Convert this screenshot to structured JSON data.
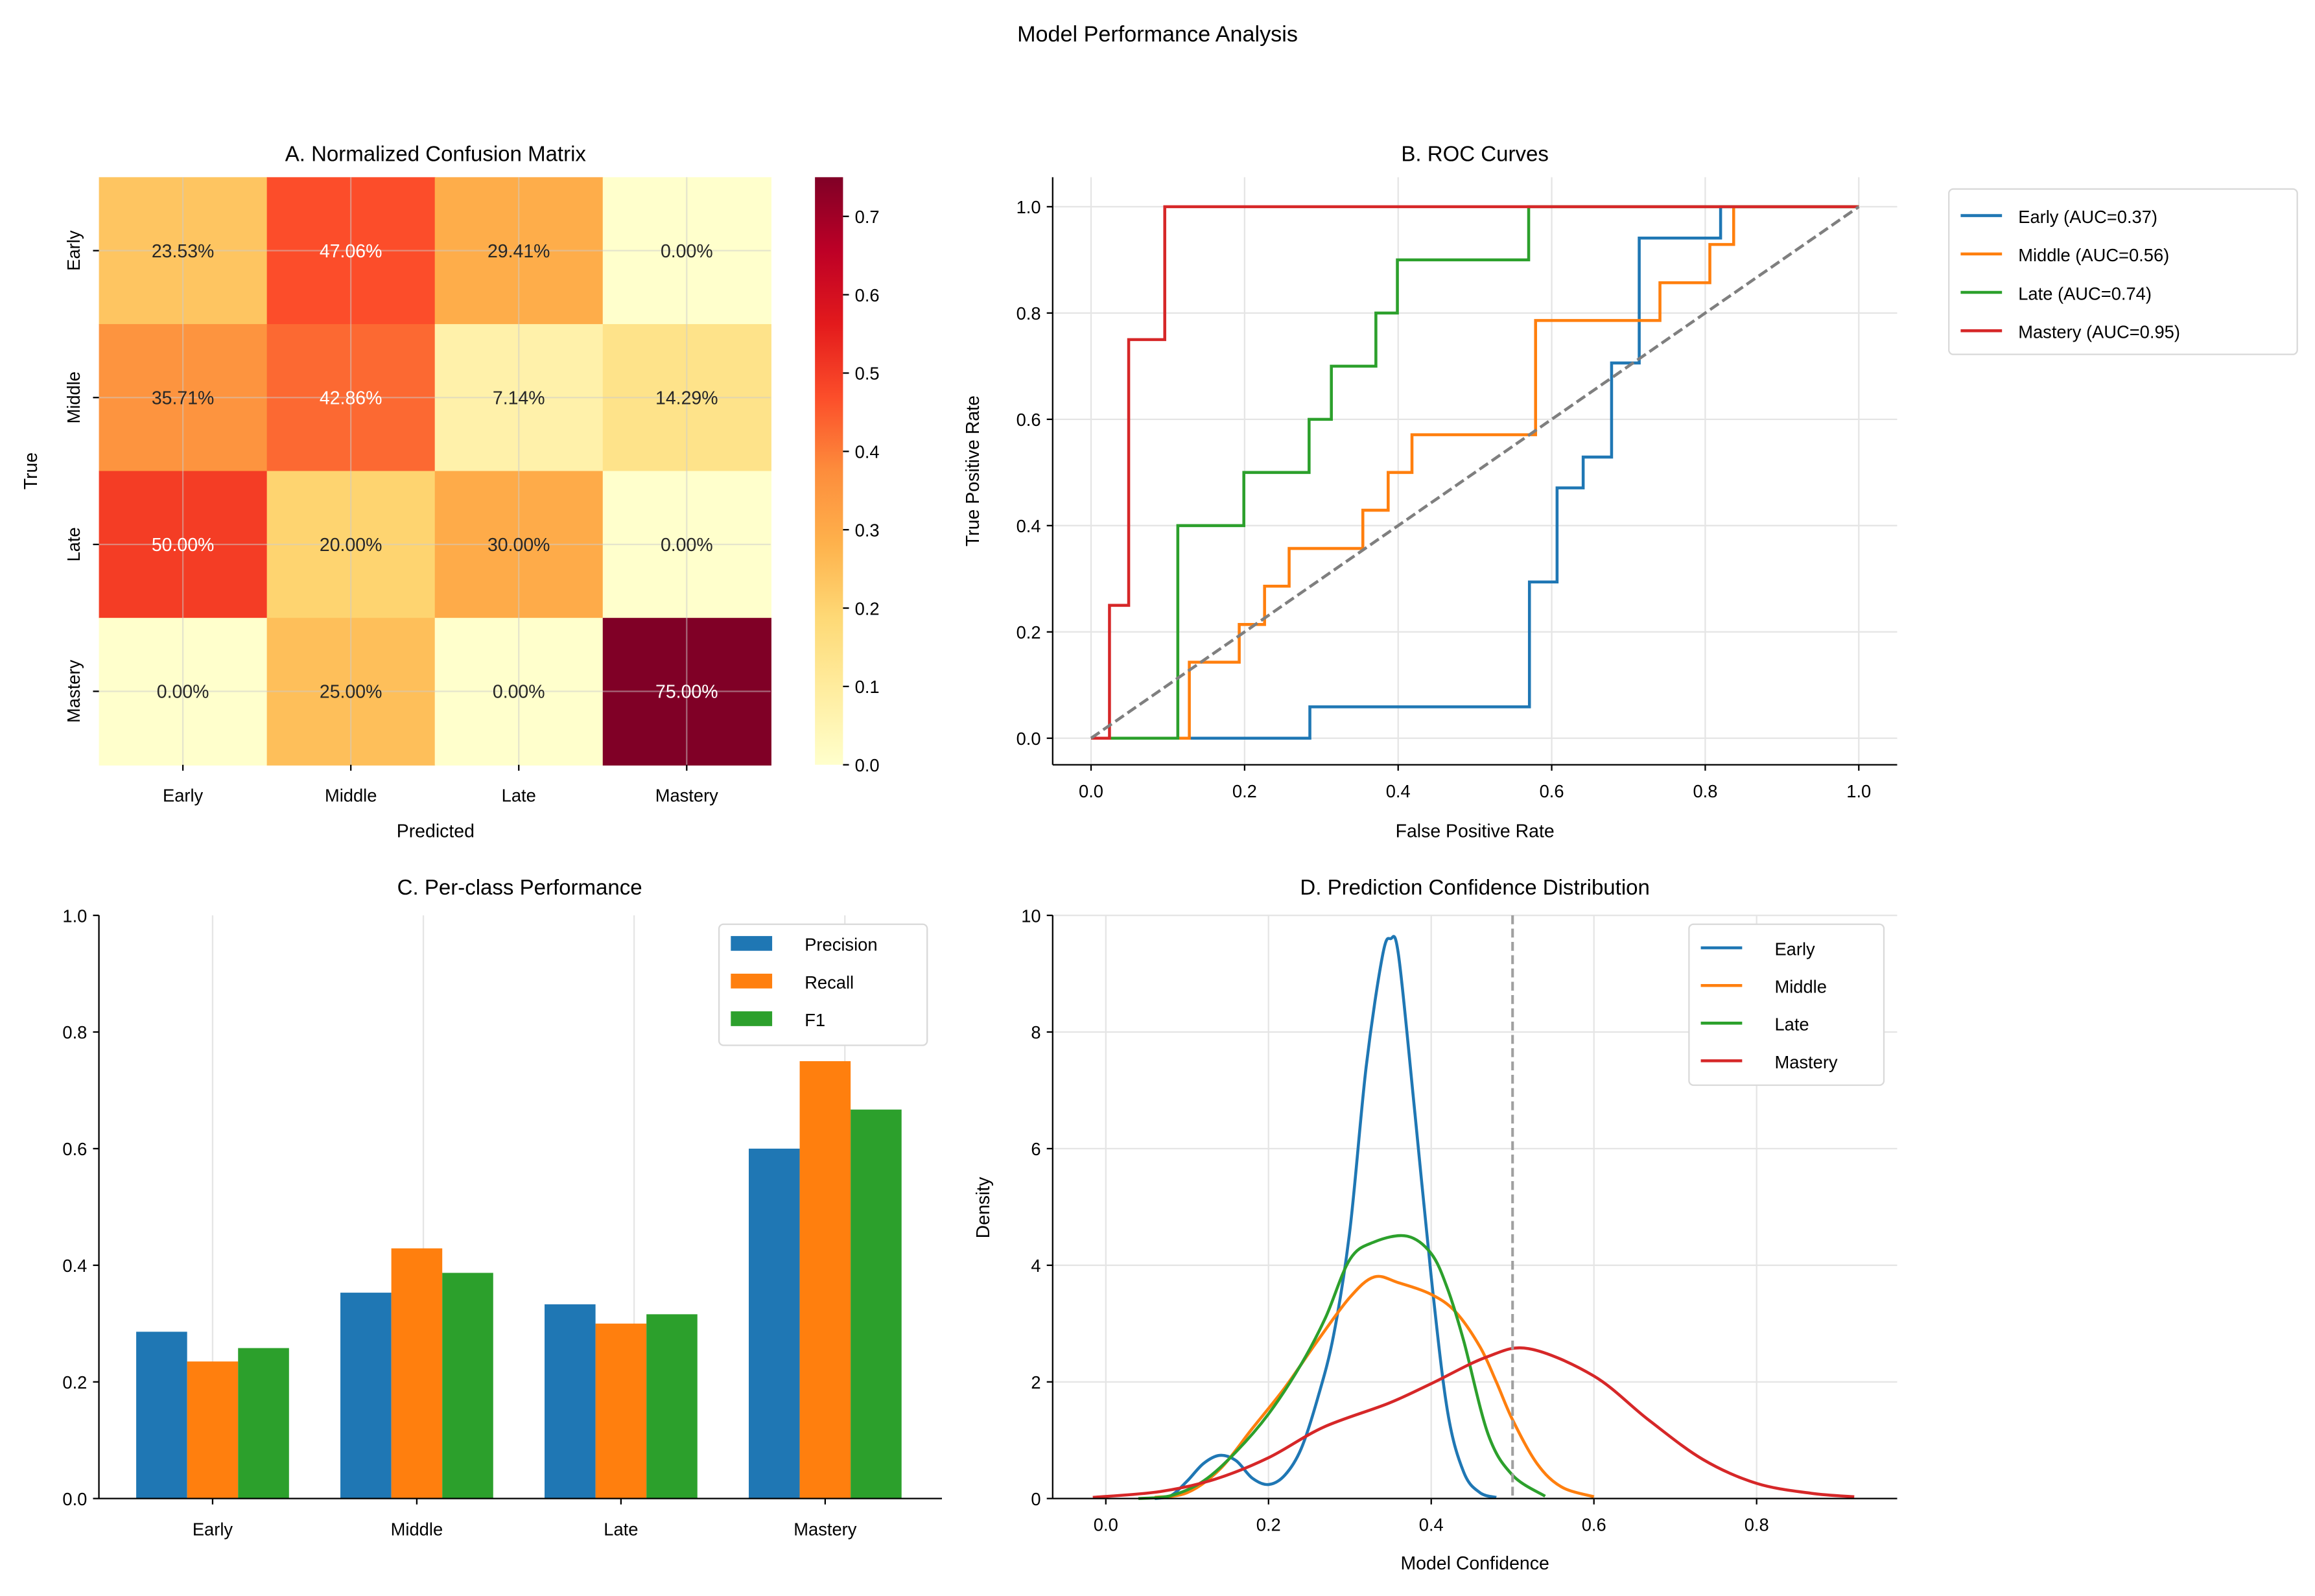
{
  "title": "Model Performance Analysis",
  "colors": {
    "Early": "#1f77b4",
    "Middle": "#ff7f0e",
    "Late": "#2ca02c",
    "Mastery": "#d62728",
    "grid": "#e5e5e5",
    "diagonal": "#7f7f7f"
  },
  "chart_data": [
    {
      "type": "heatmap",
      "title": "A. Normalized Confusion Matrix",
      "xlabel": "Predicted",
      "ylabel": "True",
      "x_categories": [
        "Early",
        "Middle",
        "Late",
        "Mastery"
      ],
      "y_categories": [
        "Early",
        "Middle",
        "Late",
        "Mastery"
      ],
      "values": [
        [
          0.2353,
          0.4706,
          0.2941,
          0.0
        ],
        [
          0.3571,
          0.4286,
          0.0714,
          0.1429
        ],
        [
          0.5,
          0.2,
          0.3,
          0.0
        ],
        [
          0.0,
          0.25,
          0.0,
          0.75
        ]
      ],
      "labels": [
        [
          "23.53%",
          "47.06%",
          "29.41%",
          "0.00%"
        ],
        [
          "35.71%",
          "42.86%",
          "7.14%",
          "14.29%"
        ],
        [
          "50.00%",
          "20.00%",
          "30.00%",
          "0.00%"
        ],
        [
          "0.00%",
          "25.00%",
          "0.00%",
          "75.00%"
        ]
      ],
      "colormap": "YlOrRd",
      "colorbar": {
        "range": [
          0,
          0.75
        ],
        "ticks": [
          "0.0",
          "0.1",
          "0.2",
          "0.3",
          "0.4",
          "0.5",
          "0.6",
          "0.7"
        ]
      }
    },
    {
      "type": "line",
      "title": "B. ROC Curves",
      "xlabel": "False Positive Rate",
      "ylabel": "True Positive Rate",
      "xlim": [
        -0.05,
        1.05
      ],
      "ylim": [
        -0.05,
        1.05
      ],
      "xticks": [
        "0.0",
        "0.2",
        "0.4",
        "0.6",
        "0.8",
        "1.0"
      ],
      "yticks": [
        "0.0",
        "0.2",
        "0.4",
        "0.6",
        "0.8",
        "1.0"
      ],
      "grid": true,
      "legend": "outside-right",
      "series": [
        {
          "name": "Early (AUC=0.37)",
          "class": "Early",
          "fpr": [
            0,
            0.285,
            0.285,
            0.571,
            0.571,
            0.607,
            0.607,
            0.641,
            0.641,
            0.678,
            0.678,
            0.714,
            0.714,
            0.82,
            0.82,
            1
          ],
          "tpr": [
            0,
            0,
            0.059,
            0.059,
            0.294,
            0.294,
            0.471,
            0.471,
            0.529,
            0.529,
            0.706,
            0.706,
            0.941,
            0.941,
            1,
            1
          ]
        },
        {
          "name": "Middle (AUC=0.56)",
          "class": "Middle",
          "fpr": [
            0,
            0.128,
            0.128,
            0.193,
            0.193,
            0.226,
            0.226,
            0.258,
            0.258,
            0.354,
            0.354,
            0.387,
            0.387,
            0.418,
            0.418,
            0.579,
            0.579,
            0.741,
            0.741,
            0.806,
            0.806,
            0.837,
            0.837,
            1
          ],
          "tpr": [
            0,
            0,
            0.143,
            0.143,
            0.214,
            0.214,
            0.286,
            0.286,
            0.357,
            0.357,
            0.429,
            0.429,
            0.5,
            0.5,
            0.571,
            0.571,
            0.786,
            0.786,
            0.857,
            0.857,
            0.929,
            0.929,
            1,
            1
          ]
        },
        {
          "name": "Late (AUC=0.74)",
          "class": "Late",
          "fpr": [
            0,
            0.113,
            0.113,
            0.199,
            0.199,
            0.284,
            0.284,
            0.313,
            0.313,
            0.371,
            0.371,
            0.399,
            0.399,
            0.57,
            0.57,
            1
          ],
          "tpr": [
            0,
            0,
            0.4,
            0.4,
            0.5,
            0.5,
            0.6,
            0.6,
            0.7,
            0.7,
            0.8,
            0.8,
            0.9,
            0.9,
            1,
            1
          ]
        },
        {
          "name": "Mastery (AUC=0.95)",
          "class": "Mastery",
          "fpr": [
            0,
            0.024,
            0.024,
            0.049,
            0.049,
            0.096,
            0.096,
            1
          ],
          "tpr": [
            0,
            0,
            0.25,
            0.25,
            0.75,
            0.75,
            1,
            1
          ]
        }
      ],
      "reference_line": {
        "x": [
          0,
          1
        ],
        "y": [
          0,
          1
        ],
        "style": "dashed"
      }
    },
    {
      "type": "bar",
      "title": "C. Per-class Performance",
      "categories": [
        "Early",
        "Middle",
        "Late",
        "Mastery"
      ],
      "ylim": [
        0,
        1
      ],
      "yticks": [
        "0.0",
        "0.2",
        "0.4",
        "0.6",
        "0.8",
        "1.0"
      ],
      "legend": "top-right",
      "series": [
        {
          "name": "Precision",
          "values": [
            0.286,
            0.353,
            0.333,
            0.6
          ]
        },
        {
          "name": "Recall",
          "values": [
            0.235,
            0.429,
            0.3,
            0.75
          ]
        },
        {
          "name": "F1",
          "values": [
            0.258,
            0.387,
            0.316,
            0.667
          ]
        }
      ]
    },
    {
      "type": "line",
      "title": "D. Prediction Confidence Distribution",
      "xlabel": "Model Confidence",
      "ylabel": "Density",
      "xlim": [
        -0.065,
        0.973
      ],
      "ylim": [
        0,
        10
      ],
      "xticks": [
        "0.0",
        "0.2",
        "0.4",
        "0.6",
        "0.8"
      ],
      "yticks": [
        "0",
        "2",
        "4",
        "6",
        "8",
        "10"
      ],
      "grid": true,
      "legend": "top-right",
      "threshold": 0.5,
      "series": [
        {
          "name": "Early",
          "x": [
            0.06,
            0.08,
            0.1,
            0.12,
            0.14,
            0.16,
            0.18,
            0.2,
            0.22,
            0.24,
            0.26,
            0.28,
            0.3,
            0.32,
            0.34,
            0.35,
            0.36,
            0.38,
            0.4,
            0.42,
            0.44,
            0.46,
            0.48
          ],
          "y": [
            0.0,
            0.05,
            0.3,
            0.6,
            0.74,
            0.65,
            0.35,
            0.24,
            0.4,
            0.85,
            1.7,
            2.8,
            4.6,
            7.4,
            9.3,
            9.6,
            9.3,
            6.6,
            3.8,
            1.5,
            0.45,
            0.1,
            0.02
          ]
        },
        {
          "name": "Middle",
          "x": [
            0.06,
            0.1,
            0.14,
            0.18,
            0.22,
            0.26,
            0.3,
            0.33,
            0.36,
            0.4,
            0.43,
            0.46,
            0.48,
            0.5,
            0.53,
            0.56,
            0.6
          ],
          "y": [
            0.02,
            0.1,
            0.5,
            1.2,
            1.9,
            2.7,
            3.45,
            3.8,
            3.7,
            3.5,
            3.2,
            2.6,
            2.0,
            1.35,
            0.6,
            0.2,
            0.03
          ]
        },
        {
          "name": "Late",
          "x": [
            0.04,
            0.08,
            0.12,
            0.16,
            0.2,
            0.24,
            0.27,
            0.3,
            0.33,
            0.37,
            0.4,
            0.42,
            0.44,
            0.47,
            0.5,
            0.54
          ],
          "y": [
            0.0,
            0.05,
            0.3,
            0.8,
            1.45,
            2.3,
            3.1,
            4.1,
            4.4,
            4.5,
            4.2,
            3.6,
            2.7,
            1.1,
            0.4,
            0.04
          ]
        },
        {
          "name": "Mastery",
          "x": [
            -0.016,
            0.067,
            0.134,
            0.2,
            0.267,
            0.347,
            0.4,
            0.467,
            0.52,
            0.6,
            0.667,
            0.734,
            0.8,
            0.867,
            0.92
          ],
          "y": [
            0.02,
            0.12,
            0.33,
            0.7,
            1.22,
            1.63,
            1.97,
            2.42,
            2.57,
            2.1,
            1.35,
            0.67,
            0.26,
            0.09,
            0.03
          ]
        }
      ]
    }
  ]
}
